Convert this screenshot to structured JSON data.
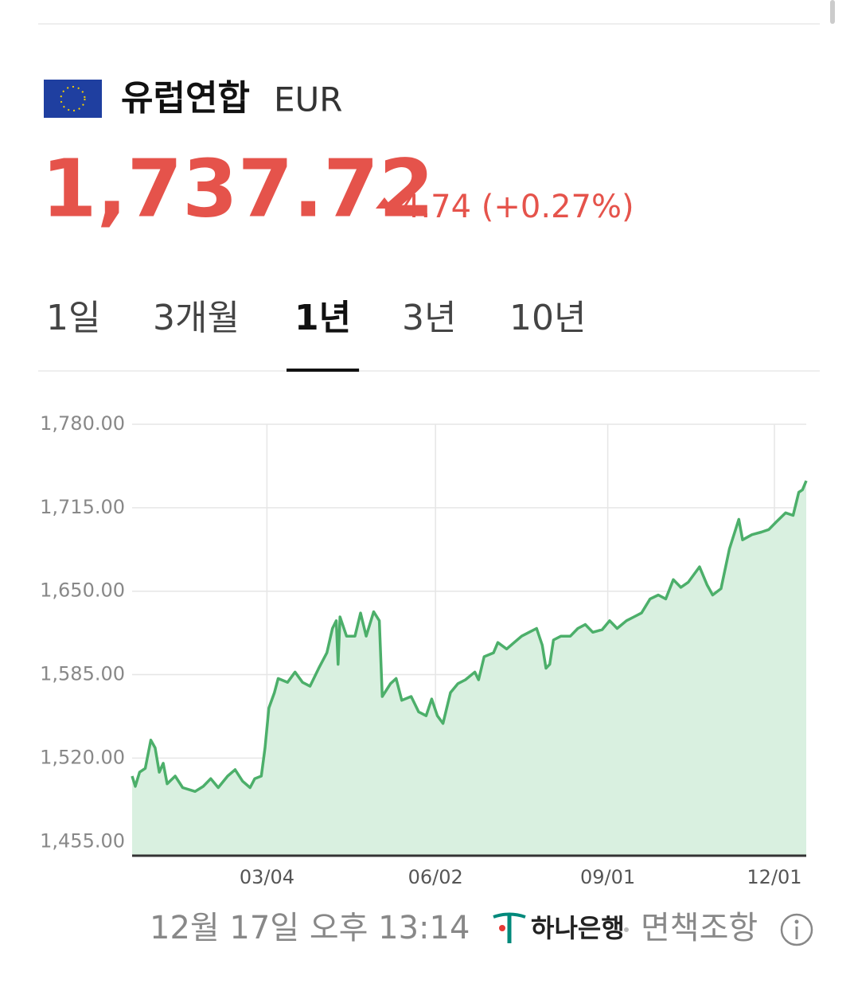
{
  "header": {
    "name": "유럽연합",
    "code": "EUR",
    "price": "1,737.72",
    "change": "4.74 (+0.27%)"
  },
  "tabs": [
    {
      "label": "1일",
      "selected": false
    },
    {
      "label": "3개월",
      "selected": false
    },
    {
      "label": "1년",
      "selected": true
    },
    {
      "label": "3년",
      "selected": false
    },
    {
      "label": "10년",
      "selected": false
    }
  ],
  "chart_data": {
    "type": "line",
    "x": [
      0,
      1.7,
      4,
      7,
      10,
      12.3,
      14.5,
      16.6,
      18.7,
      23,
      27,
      33.6,
      38,
      42,
      46,
      51,
      55,
      59,
      63,
      65.5,
      69,
      71,
      73,
      76,
      78,
      83,
      87,
      91,
      95,
      100,
      104,
      107,
      109,
      110,
      111,
      114.5,
      119,
      122,
      125,
      129,
      132,
      133.6,
      138,
      141,
      144,
      149,
      153,
      157,
      160,
      163,
      166,
      170,
      174,
      178,
      183,
      185,
      188,
      193,
      195.3,
      200,
      204,
      208,
      212,
      216,
      219,
      221,
      223,
      225,
      229,
      234,
      238,
      242,
      246,
      251,
      255,
      259,
      264,
      268,
      272,
      276.6,
      281,
      285,
      289,
      293,
      297,
      303,
      307,
      310,
      314.5,
      319,
      324,
      326,
      331,
      336,
      340,
      344,
      349,
      353,
      356,
      358,
      360
    ],
    "series": [
      {
        "color": "#4caf6a",
        "fill": "#d9f0e0",
        "values": [
          1506,
          1498,
          1509,
          1512,
          1534,
          1528,
          1509,
          1516,
          1500,
          1506,
          1497,
          1494,
          1498,
          1504,
          1497,
          1506,
          1511,
          1502,
          1497,
          1504,
          1506,
          1528,
          1559,
          1571,
          1582,
          1579,
          1587,
          1579,
          1576,
          1591,
          1602,
          1621,
          1627,
          1593,
          1630,
          1615,
          1615,
          1633,
          1615,
          1634,
          1627,
          1568,
          1578,
          1582,
          1565,
          1568,
          1556,
          1553,
          1566,
          1553,
          1547,
          1571,
          1578,
          1581,
          1587,
          1581,
          1599,
          1602,
          1610,
          1605,
          1610,
          1615,
          1618,
          1621,
          1608,
          1590,
          1593,
          1612,
          1615,
          1615,
          1621,
          1624,
          1618,
          1620,
          1627,
          1621,
          1627,
          1630,
          1633,
          1644,
          1647,
          1644,
          1659,
          1653,
          1657,
          1669,
          1655,
          1647,
          1652,
          1683,
          1706,
          1690,
          1694,
          1696,
          1698,
          1704,
          1711,
          1709,
          1727,
          1729,
          1736
        ]
      }
    ],
    "xlim": [
      0,
      360
    ],
    "xticks": [
      {
        "value": 72,
        "label": "03/04"
      },
      {
        "value": 162,
        "label": "06/02"
      },
      {
        "value": 254,
        "label": "09/01"
      },
      {
        "value": 343,
        "label": "12/01"
      }
    ],
    "ylim": [
      1444,
      1780
    ],
    "yticks": [
      {
        "value": 1455,
        "label": "1,455.00"
      },
      {
        "value": 1520,
        "label": "1,520.00"
      },
      {
        "value": 1585,
        "label": "1,585.00"
      },
      {
        "value": 1650,
        "label": "1,650.00"
      },
      {
        "value": 1715,
        "label": "1,715.00"
      },
      {
        "value": 1780,
        "label": "1,780.00"
      }
    ],
    "grid": true
  },
  "footer": {
    "timestamp": "12월 17일 오후 13:14",
    "bank": "하나은행",
    "disclaimer": "면책조항"
  }
}
